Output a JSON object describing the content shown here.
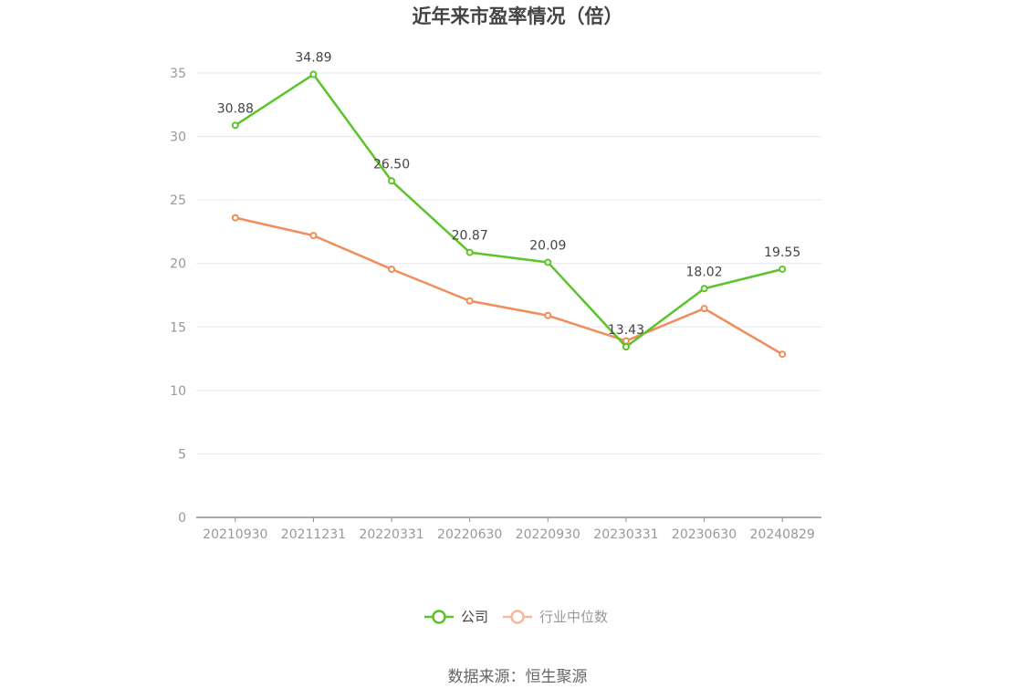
{
  "chart_data": {
    "type": "line",
    "title": "近年来市盈率情况（倍）",
    "categories": [
      "20210930",
      "20211231",
      "20220331",
      "20220630",
      "20220930",
      "20230331",
      "20230630",
      "20240829"
    ],
    "ylim": [
      0,
      35
    ],
    "yticks": [
      0,
      5,
      10,
      15,
      20,
      25,
      30,
      35
    ],
    "grid": true,
    "legend_position": "bottom",
    "series": [
      {
        "name": "公司",
        "color": "#5cc42a",
        "values": [
          30.88,
          34.89,
          26.5,
          20.87,
          20.09,
          13.43,
          18.02,
          19.55
        ],
        "labels": [
          "30.88",
          "34.89",
          "26.50",
          "20.87",
          "20.09",
          "13.43",
          "18.02",
          "19.55"
        ]
      },
      {
        "name": "行业中位数",
        "color": "#f28c5a",
        "legend_color": "#f8b89a",
        "values": [
          23.6,
          22.2,
          19.55,
          17.05,
          15.9,
          13.9,
          16.45,
          12.85
        ]
      }
    ]
  },
  "source": "数据来源：恒生聚源"
}
